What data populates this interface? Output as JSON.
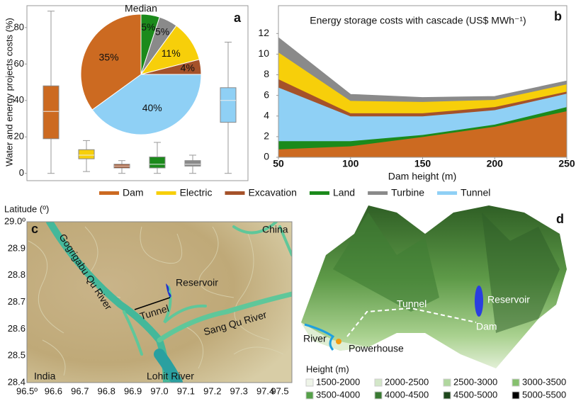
{
  "chart_data": [
    {
      "type": "box",
      "panel": "a",
      "ylabel": "Water and energy projects costs (%)",
      "ylim": [
        -4,
        92
      ],
      "yticks": [
        0,
        20,
        40,
        60,
        80
      ],
      "categories": [
        "Dam",
        "Electric",
        "Excavation",
        "Land",
        "Turbine",
        "Tunnel"
      ],
      "colors": [
        "#cc6a21",
        "#f7cf0a",
        "#a5522a",
        "#1b8a1b",
        "#8a8a8a",
        "#8fd0f5"
      ],
      "min": [
        0,
        1,
        0,
        0,
        0,
        0
      ],
      "q1": [
        19,
        8,
        3,
        3,
        4,
        28
      ],
      "median": [
        34,
        10,
        4,
        5,
        5,
        40
      ],
      "q3": [
        48,
        13,
        5,
        9,
        7,
        47
      ],
      "max": [
        89,
        18,
        7,
        17,
        10,
        72
      ]
    },
    {
      "type": "pie",
      "title": "Median",
      "categories": [
        "Land",
        "Turbine",
        "Electric",
        "Excavation",
        "Tunnel",
        "Dam"
      ],
      "values": [
        5,
        5,
        11,
        4,
        40,
        35
      ],
      "value_labels": [
        "5%",
        "5%",
        "11%",
        "4%",
        "40%",
        "35%"
      ],
      "colors": [
        "#1b8a1b",
        "#8a8a8a",
        "#f7cf0a",
        "#a5522a",
        "#8fd0f5",
        "#cc6a21"
      ]
    },
    {
      "type": "area",
      "panel": "b",
      "title": "Energy storage costs with cascade (US$ MWh⁻¹)",
      "xlabel": "Dam height (m)",
      "x": [
        50,
        100,
        150,
        200,
        250
      ],
      "xlim": [
        50,
        250
      ],
      "xticks": [
        50,
        100,
        150,
        200,
        250
      ],
      "ylim": [
        0,
        14.7
      ],
      "yticks": [
        0,
        2,
        4,
        6,
        8,
        10,
        12
      ],
      "series": [
        {
          "name": "Dam",
          "color": "#cc6a21",
          "values": [
            0.8,
            1.1,
            2.0,
            3.0,
            4.5
          ]
        },
        {
          "name": "Land",
          "color": "#1b8a1b",
          "values": [
            0.8,
            0.5,
            0.2,
            0.2,
            0.4
          ]
        },
        {
          "name": "Tunnel",
          "color": "#8fd0f5",
          "values": [
            5.2,
            2.4,
            1.8,
            1.4,
            1.3
          ]
        },
        {
          "name": "Excavation",
          "color": "#a5522a",
          "values": [
            0.8,
            0.3,
            0.3,
            0.3,
            0.2
          ]
        },
        {
          "name": "Electric",
          "color": "#f7cf0a",
          "values": [
            2.6,
            1.2,
            1.1,
            0.7,
            0.7
          ]
        },
        {
          "name": "Turbine",
          "color": "#8a8a8a",
          "values": [
            1.4,
            0.6,
            0.4,
            0.3,
            0.3
          ]
        }
      ]
    }
  ],
  "legend": {
    "items": [
      {
        "name": "Dam",
        "color": "#cc6a21"
      },
      {
        "name": "Electric",
        "color": "#f7cf0a"
      },
      {
        "name": "Excavation",
        "color": "#a5522a"
      },
      {
        "name": "Land",
        "color": "#1b8a1b"
      },
      {
        "name": "Turbine",
        "color": "#8a8a8a"
      },
      {
        "name": "Tunnel",
        "color": "#8fd0f5"
      }
    ]
  },
  "map": {
    "panel": "c",
    "ylabel": "Latitude (º)",
    "xlim": [
      96.5,
      97.5
    ],
    "ylim": [
      28.4,
      29.0
    ],
    "xticks": [
      {
        "value": 96.5,
        "label": "96.5º"
      },
      96.6,
      96.7,
      96.8,
      96.9,
      {
        "value": 97.0,
        "label": "97.0"
      },
      97.1,
      97.2,
      97.3,
      97.4,
      97.5
    ],
    "yticks": [
      28.4,
      28.5,
      28.6,
      28.7,
      28.8,
      28.9,
      {
        "value": 29.0,
        "label": "29.0º"
      }
    ],
    "labels": {
      "china": "China",
      "india": "India",
      "reservoir": "Reservoir",
      "tunnel": "Tunnel",
      "river1": "Gogrigabu Qu River",
      "river2": "Sang Qu River",
      "river3": "Lohit River"
    }
  },
  "terrain": {
    "panel": "d",
    "labels": {
      "tunnel": "Tunnel",
      "reservoir": "Reservoir",
      "dam": "Dam",
      "river": "River",
      "powerhouse": "Powerhouse"
    },
    "legend_title": "Height (m)",
    "legend": [
      {
        "label": "1500-2000",
        "color": "#eef4e8"
      },
      {
        "label": "2000-2500",
        "color": "#d3e7c8"
      },
      {
        "label": "2500-3000",
        "color": "#b0d79e"
      },
      {
        "label": "3000-3500",
        "color": "#86c06e"
      },
      {
        "label": "3500-4000",
        "color": "#55a049"
      },
      {
        "label": "4000-4500",
        "color": "#3a7a33"
      },
      {
        "label": "4500-5000",
        "color": "#1e471c"
      },
      {
        "label": "5000-5500",
        "color": "#000000"
      }
    ]
  }
}
